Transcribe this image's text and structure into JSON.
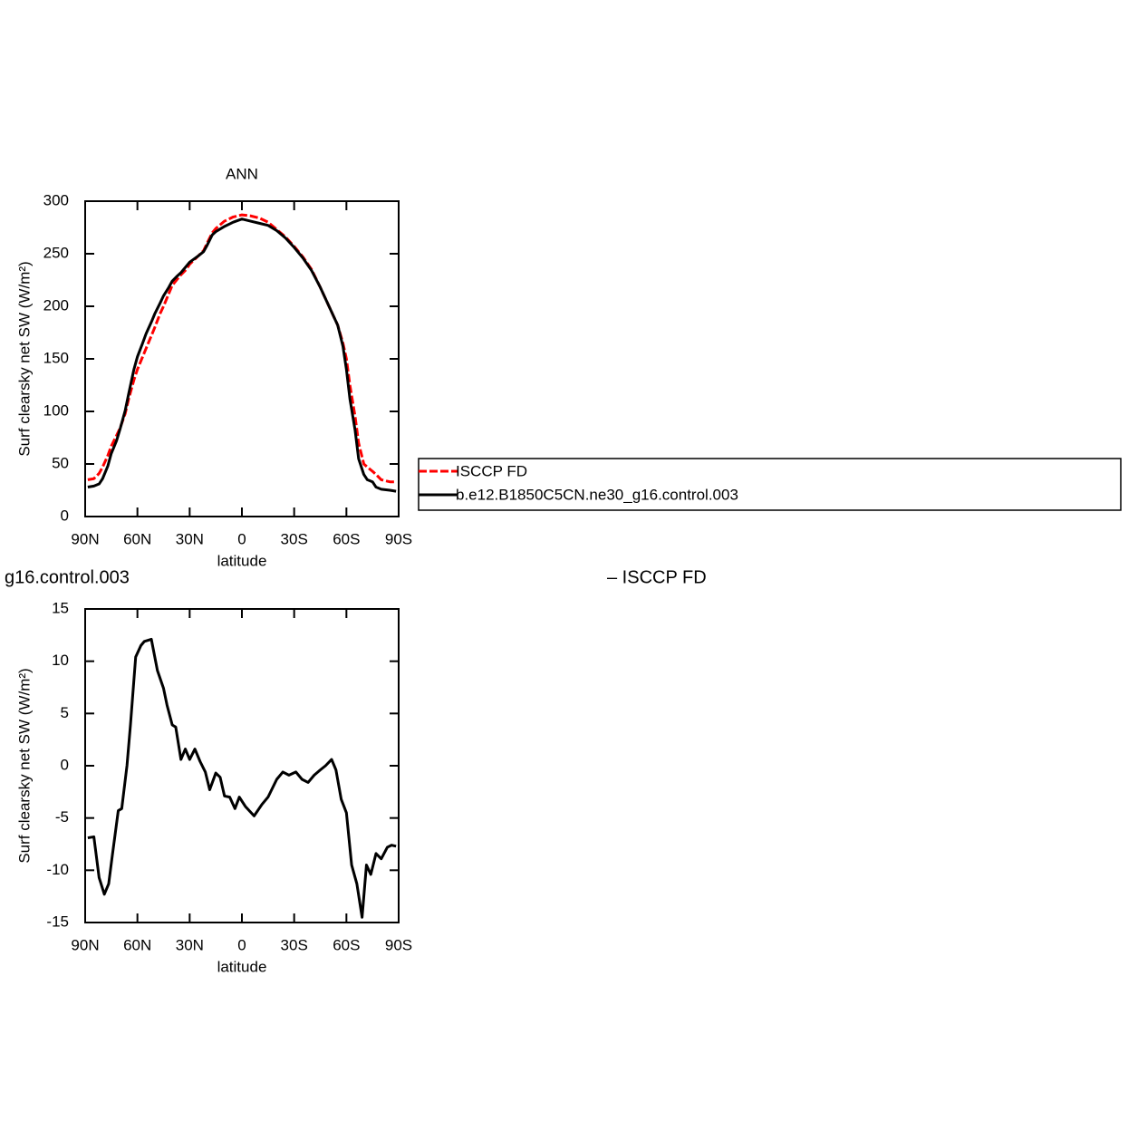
{
  "chart_data": [
    {
      "type": "line",
      "title": "ANN",
      "xlabel": "latitude",
      "ylabel": "Surf clearsky net SW (W/m²)",
      "xlim": [
        90,
        -90
      ],
      "ylim": [
        0,
        300
      ],
      "xticks": [
        {
          "value": 90,
          "label": "90N"
        },
        {
          "value": 60,
          "label": "60N"
        },
        {
          "value": 30,
          "label": "30N"
        },
        0,
        {
          "value": -30,
          "label": "30S"
        },
        {
          "value": -60,
          "label": "60S"
        },
        {
          "value": -90,
          "label": "90S"
        }
      ],
      "yticks": [
        0,
        50,
        100,
        150,
        200,
        250,
        300
      ],
      "x": [
        88.5,
        85,
        82,
        80,
        77,
        75,
        72,
        70,
        67,
        65,
        62,
        60,
        57,
        55,
        52,
        50,
        47,
        45,
        42,
        40,
        37,
        35,
        32,
        30,
        25,
        22,
        20,
        17,
        15,
        10,
        5,
        0,
        -5,
        -10,
        -15,
        -20,
        -25,
        -30,
        -35,
        -40,
        -45,
        -50,
        -55,
        -58,
        -60,
        -62,
        -65,
        -67,
        -70,
        -72,
        -75,
        -77,
        -80,
        -85,
        -88.5
      ],
      "series": [
        {
          "name": "ISCCP FD",
          "color": "#ff0000",
          "style": "dashed",
          "values": [
            35,
            36,
            41,
            47,
            58,
            67,
            77,
            84,
            98,
            112,
            130,
            140,
            152,
            160,
            172,
            180,
            193,
            200,
            212,
            220,
            226,
            230,
            235,
            240,
            248,
            253,
            260,
            270,
            274,
            281,
            285,
            287,
            286,
            284,
            280,
            273,
            266,
            257,
            247,
            235,
            218,
            200,
            182,
            165,
            150,
            125,
            95,
            70,
            50,
            47,
            43,
            40,
            35,
            33,
            33
          ]
        },
        {
          "name": "b.e12.B1850C5CN.ne30_g16.control.003",
          "color": "#000000",
          "style": "solid",
          "values": [
            28,
            29,
            31,
            36,
            48,
            60,
            72,
            83,
            101,
            117,
            140,
            152,
            165,
            174,
            185,
            193,
            203,
            210,
            218,
            224,
            229,
            232,
            238,
            242,
            248,
            252,
            258,
            268,
            271,
            276,
            280,
            283,
            281,
            279,
            277,
            272,
            265,
            256,
            246,
            234,
            218,
            200,
            182,
            162,
            140,
            112,
            82,
            55,
            40,
            35,
            33,
            28,
            26,
            25,
            24
          ]
        }
      ]
    },
    {
      "type": "line",
      "title_left": "g16.control.003",
      "title_right": "– ISCCP FD",
      "xlabel": "latitude",
      "ylabel": "Surf clearsky net SW (W/m²)",
      "xlim": [
        90,
        -90
      ],
      "ylim": [
        -15,
        15
      ],
      "xticks": [
        {
          "value": 90,
          "label": "90N"
        },
        {
          "value": 60,
          "label": "60N"
        },
        {
          "value": 30,
          "label": "30N"
        },
        0,
        {
          "value": -30,
          "label": "30S"
        },
        {
          "value": -60,
          "label": "60S"
        },
        {
          "value": -90,
          "label": "90S"
        }
      ],
      "yticks": [
        -15,
        -10,
        -5,
        0,
        5,
        10,
        15
      ],
      "x": [
        88.5,
        85,
        82,
        79,
        76.5,
        74.5,
        71,
        69,
        66,
        64,
        61,
        58,
        56,
        52,
        48.5,
        45,
        43,
        40,
        38,
        35,
        32.5,
        30,
        27,
        24,
        21,
        18.5,
        15,
        12.5,
        10,
        7,
        4,
        1.5,
        -2,
        -7,
        -11.5,
        -15,
        -20,
        -23.5,
        -27,
        -31,
        -34.5,
        -38,
        -41.5,
        -45,
        -48,
        -51.5,
        -54,
        -57,
        -60,
        -63,
        -66,
        -69,
        -71.5,
        -74,
        -77,
        -80,
        -83.5,
        -86,
        -88.5
      ],
      "series": [
        {
          "color": "#000000",
          "style": "solid",
          "values": [
            -6.9,
            -6.8,
            -10.7,
            -12.3,
            -11.3,
            -8.7,
            -4.3,
            -4.1,
            0,
            3.9,
            10.4,
            11.5,
            11.9,
            12.1,
            9.1,
            7.4,
            5.8,
            3.9,
            3.7,
            0.6,
            1.6,
            0.6,
            1.6,
            0.4,
            -0.6,
            -2.3,
            -0.7,
            -1.1,
            -2.9,
            -3.0,
            -4.1,
            -3.0,
            -3.9,
            -4.8,
            -3.7,
            -3.0,
            -1.3,
            -0.6,
            -0.9,
            -0.6,
            -1.3,
            -1.6,
            -0.9,
            -0.4,
            0,
            0.6,
            -0.4,
            -3.2,
            -4.5,
            -9.5,
            -11.3,
            -14.5,
            -9.5,
            -10.4,
            -8.4,
            -8.9,
            -7.8,
            -7.6,
            -7.7
          ]
        }
      ]
    }
  ]
}
